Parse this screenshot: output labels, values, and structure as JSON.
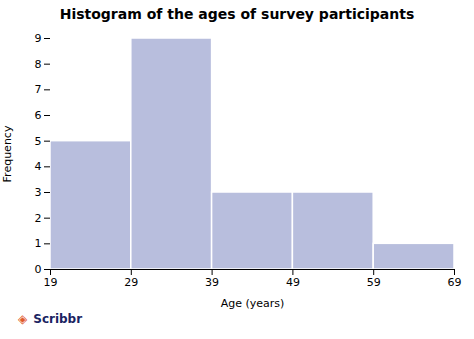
{
  "chart_data": {
    "type": "histogram",
    "title": "Histogram of the ages of survey participants",
    "xlabel": "Age (years)",
    "ylabel": "Frequency",
    "bins": [
      19,
      29,
      39,
      49,
      59,
      69
    ],
    "values": [
      5,
      9,
      3,
      3,
      1
    ],
    "color": "#b8bedd",
    "xlim": [
      19,
      69
    ],
    "xticks": [
      19,
      29,
      39,
      49,
      59,
      69
    ],
    "ylim": [
      0,
      9
    ],
    "yticks": [
      0,
      1,
      2,
      3,
      4,
      5,
      6,
      7,
      8,
      9
    ],
    "grid": false,
    "annotations": [
      {
        "text": "◈",
        "color": "#e05a2b"
      },
      {
        "text": "Scribbr",
        "color": "#1a2462"
      }
    ]
  }
}
